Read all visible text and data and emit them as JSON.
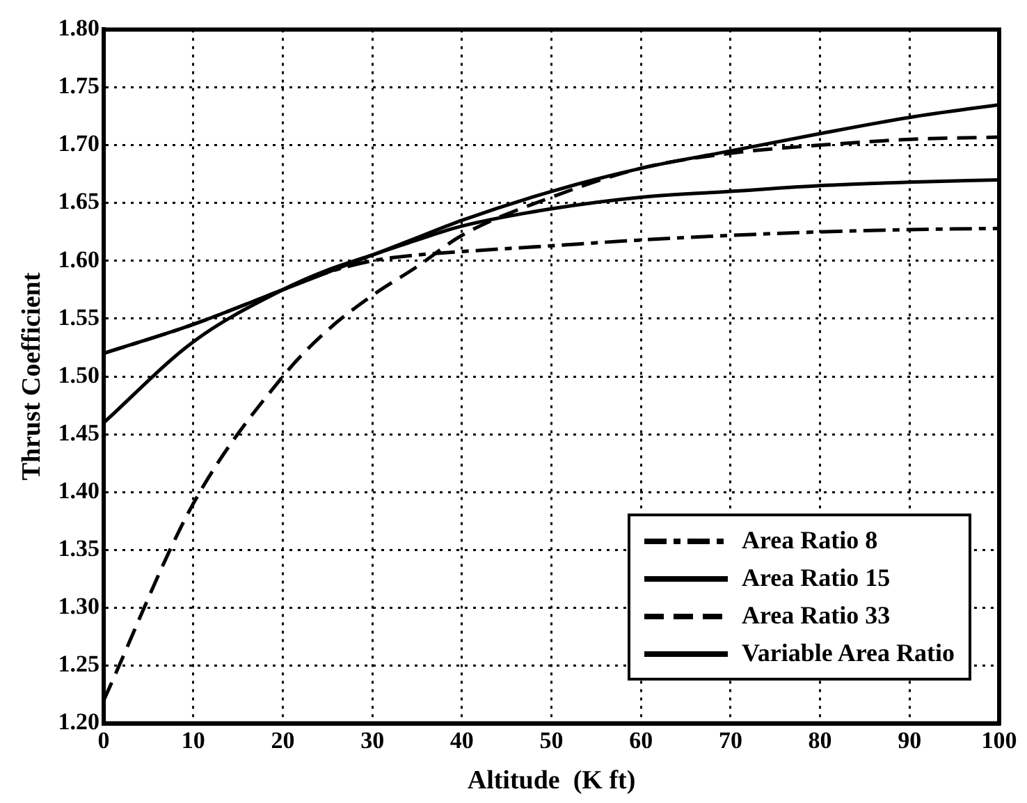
{
  "chart_data": {
    "type": "line",
    "xlabel": "Altitude  (K ft)",
    "ylabel": "Thrust Coefficient",
    "x": [
      0,
      10,
      20,
      25,
      30,
      35,
      40,
      50,
      60,
      70,
      80,
      90,
      100
    ],
    "series": [
      {
        "name": "Area Ratio 8",
        "color": "#000000",
        "line_style": "dotted",
        "values": [
          1.52,
          1.545,
          1.575,
          1.59,
          1.6,
          1.605,
          1.608,
          1.613,
          1.618,
          1.622,
          1.625,
          1.627,
          1.628
        ]
      },
      {
        "name": "Area Ratio 15",
        "color": "#000000",
        "line_style": "solid",
        "values": [
          1.46,
          1.53,
          1.575,
          1.592,
          1.605,
          1.618,
          1.63,
          1.645,
          1.655,
          1.66,
          1.665,
          1.668,
          1.67
        ]
      },
      {
        "name": "Area Ratio 33",
        "color": "#000000",
        "line_style": "dashed",
        "values": [
          1.22,
          1.39,
          1.5,
          1.54,
          1.57,
          1.595,
          1.622,
          1.655,
          1.68,
          1.693,
          1.7,
          1.705,
          1.707
        ]
      },
      {
        "name": "Variable Area Ratio",
        "color": "#000000",
        "line_style": "solid",
        "values": [
          1.52,
          1.545,
          1.575,
          1.59,
          1.605,
          1.62,
          1.635,
          1.66,
          1.68,
          1.695,
          1.71,
          1.724,
          1.735
        ]
      }
    ],
    "xlim": [
      0,
      100
    ],
    "xticks": [
      0,
      10,
      20,
      30,
      40,
      50,
      60,
      70,
      80,
      90,
      100
    ],
    "ylim": [
      1.2,
      1.8
    ],
    "yticks": [
      {
        "value": 1.2,
        "label": "1.20"
      },
      1.25,
      {
        "value": 1.3,
        "label": "1.30"
      },
      1.35,
      {
        "value": 1.4,
        "label": "1.40"
      },
      1.45,
      {
        "value": 1.5,
        "label": "1.50"
      },
      1.55,
      {
        "value": 1.6,
        "label": "1.60"
      },
      1.65,
      {
        "value": 1.7,
        "label": "1.70"
      },
      1.75,
      {
        "value": 1.8,
        "label": "1.80"
      }
    ],
    "grid": true,
    "legend": "bottom right",
    "marker": "none"
  }
}
